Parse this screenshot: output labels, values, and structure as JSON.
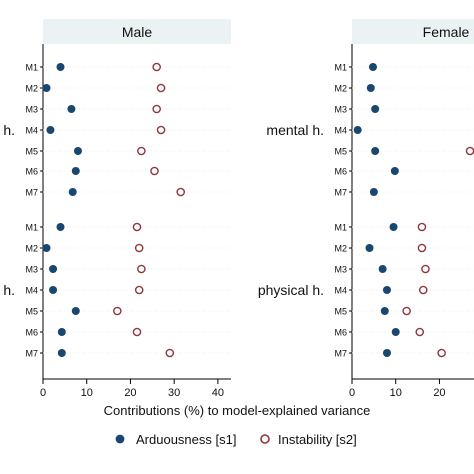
{
  "chart_data": {
    "type": "scatter",
    "xlabel": "Contributions (%) to model-explained variance",
    "xticks": [
      0,
      10,
      20,
      30,
      40
    ],
    "xlim": [
      0,
      43
    ],
    "grid": true,
    "legend_placement": "bottom",
    "groups": [
      {
        "label": "mental h.",
        "label_male_panel": "h.",
        "models": [
          "M1",
          "M2",
          "M3",
          "M4",
          "M5",
          "M6",
          "M7"
        ]
      },
      {
        "label": "physical h.",
        "label_male_panel": "h.",
        "models": [
          "M1",
          "M2",
          "M3",
          "M4",
          "M5",
          "M6",
          "M7"
        ]
      }
    ],
    "series_info": [
      {
        "name": "Arduousness [s1]",
        "marker": "filled-circle",
        "color": "#1a476f"
      },
      {
        "name": "Instability [s2]",
        "marker": "hollow-circle",
        "color": "#90353b"
      }
    ],
    "panels": [
      {
        "title": "Male",
        "mental": {
          "s1": [
            4,
            0.8,
            6.5,
            1.7,
            8,
            7.5,
            6.8
          ],
          "s2": [
            26,
            27,
            26,
            27,
            22.5,
            25.5,
            31.5
          ]
        },
        "physical": {
          "s1": [
            4,
            0.8,
            2.3,
            2.3,
            7.5,
            4.3,
            4.3
          ],
          "s2": [
            21.5,
            22,
            22.5,
            22,
            17,
            21.5,
            29
          ]
        }
      },
      {
        "title": "Female",
        "mental": {
          "s1": [
            4.8,
            4.3,
            5.3,
            1.3,
            5.3,
            9.8,
            5
          ],
          "s2": [
            null,
            null,
            null,
            null,
            27,
            null,
            null
          ]
        },
        "physical": {
          "s1": [
            9.5,
            4,
            7,
            8,
            7.5,
            10,
            8
          ],
          "s2": [
            16,
            16,
            16.8,
            16.3,
            12.5,
            15.5,
            20.5
          ]
        }
      }
    ]
  },
  "legend": {
    "s1_label": "Arduousness [s1]",
    "s2_label": "Instability [s2]"
  }
}
